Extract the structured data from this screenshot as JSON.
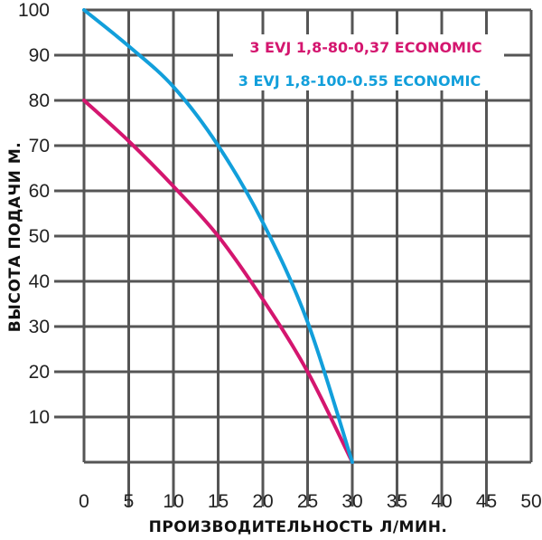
{
  "chart_data": {
    "type": "line",
    "xlabel": "ПРОИЗВОДИТЕЛЬНОСТЬ Л/МИН.",
    "ylabel": "ВЫСОТА ПОДАЧИ М.",
    "xlim": [
      0,
      50
    ],
    "ylim": [
      0,
      100
    ],
    "x_ticks": [
      "0",
      "5",
      "10",
      "15",
      "20",
      "25",
      "30",
      "35",
      "40",
      "45",
      "50"
    ],
    "y_ticks": [
      "10",
      "20",
      "30",
      "40",
      "50",
      "60",
      "70",
      "80",
      "90",
      "100"
    ],
    "grid": true,
    "legend_position": "top-right",
    "series": [
      {
        "name": "3 EVJ 1,8-80-0,37 ECONOMIC",
        "color": "#d4166f",
        "x": [
          0,
          5,
          10,
          15,
          20,
          25,
          30
        ],
        "y": [
          80,
          71,
          61,
          50,
          36,
          20,
          0
        ]
      },
      {
        "name": "3 EVJ 1,8-100-0.55 ECONOMIC",
        "color": "#129fdb",
        "x": [
          0,
          5,
          10,
          15,
          20,
          25,
          30
        ],
        "y": [
          100,
          92,
          83,
          70,
          53,
          31,
          0
        ]
      }
    ]
  }
}
